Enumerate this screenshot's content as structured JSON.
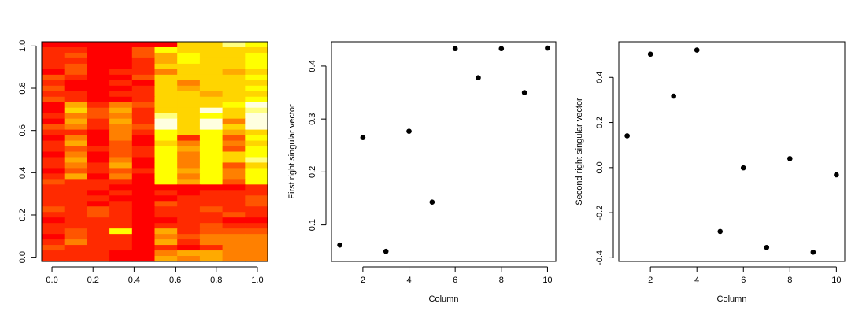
{
  "chart_data": [
    {
      "type": "heatmap",
      "title": "",
      "xlabel": "",
      "ylabel": "",
      "xlim": [
        -0.05,
        1.05
      ],
      "ylim": [
        -0.02,
        1.02
      ],
      "xticks": [
        "0.0",
        "0.2",
        "0.4",
        "0.6",
        "0.8",
        "1.0"
      ],
      "yticks": [
        "0.0",
        "0.2",
        "0.4",
        "0.6",
        "0.8",
        "1.0"
      ],
      "colormap": "heat",
      "colors": [
        "#ff0000",
        "#ff2a00",
        "#ff5500",
        "#ff8000",
        "#ffaa00",
        "#ffd500",
        "#ffff00",
        "#ffff80",
        "#ffffe0"
      ],
      "n_cols": 10,
      "n_rows": 40,
      "rows_top_to_bottom": [
        [
          0,
          0,
          0,
          0,
          0,
          0,
          5,
          5,
          7,
          6
        ],
        [
          1,
          1,
          0,
          0,
          2,
          6,
          5,
          5,
          5,
          5
        ],
        [
          1,
          2,
          0,
          0,
          2,
          4,
          6,
          5,
          5,
          6
        ],
        [
          1,
          1,
          0,
          0,
          1,
          4,
          6,
          5,
          5,
          6
        ],
        [
          1,
          2,
          0,
          0,
          1,
          5,
          5,
          5,
          5,
          6
        ],
        [
          0,
          2,
          0,
          1,
          1,
          3,
          5,
          5,
          4,
          5
        ],
        [
          2,
          1,
          0,
          0,
          2,
          5,
          5,
          5,
          5,
          6
        ],
        [
          1,
          0,
          0,
          1,
          0,
          5,
          3,
          5,
          5,
          5
        ],
        [
          2,
          0,
          0,
          0,
          1,
          5,
          4,
          5,
          5,
          6
        ],
        [
          1,
          1,
          0,
          1,
          1,
          5,
          5,
          4,
          5,
          5
        ],
        [
          2,
          1,
          0,
          0,
          1,
          5,
          5,
          5,
          5,
          6
        ],
        [
          0,
          4,
          1,
          3,
          2,
          5,
          5,
          5,
          6,
          8
        ],
        [
          0,
          5,
          2,
          4,
          1,
          5,
          5,
          8,
          5,
          7
        ],
        [
          1,
          3,
          2,
          3,
          1,
          7,
          5,
          6,
          5,
          8
        ],
        [
          0,
          4,
          1,
          4,
          1,
          8,
          5,
          8,
          3,
          8
        ],
        [
          2,
          3,
          1,
          3,
          2,
          8,
          5,
          8,
          5,
          8
        ],
        [
          1,
          1,
          0,
          3,
          1,
          6,
          5,
          6,
          4,
          5
        ],
        [
          0,
          3,
          0,
          3,
          0,
          6,
          1,
          6,
          2,
          6
        ],
        [
          1,
          4,
          0,
          2,
          0,
          5,
          3,
          6,
          3,
          5
        ],
        [
          1,
          2,
          1,
          2,
          1,
          6,
          4,
          6,
          2,
          6
        ],
        [
          0,
          3,
          0,
          2,
          1,
          6,
          3,
          6,
          5,
          6
        ],
        [
          1,
          4,
          0,
          3,
          0,
          6,
          3,
          6,
          5,
          7
        ],
        [
          1,
          3,
          1,
          4,
          0,
          6,
          3,
          6,
          2,
          5
        ],
        [
          0,
          2,
          1,
          2,
          1,
          6,
          4,
          6,
          3,
          6
        ],
        [
          1,
          4,
          0,
          3,
          0,
          6,
          3,
          6,
          3,
          6
        ],
        [
          2,
          1,
          1,
          1,
          0,
          6,
          4,
          6,
          2,
          6
        ],
        [
          1,
          1,
          1,
          0,
          0,
          0,
          0,
          0,
          0,
          1
        ],
        [
          1,
          1,
          0,
          1,
          0,
          1,
          0,
          1,
          1,
          1
        ],
        [
          1,
          1,
          1,
          0,
          0,
          0,
          1,
          1,
          1,
          2
        ],
        [
          1,
          1,
          0,
          1,
          0,
          2,
          1,
          1,
          1,
          2
        ],
        [
          2,
          1,
          2,
          1,
          0,
          1,
          1,
          2,
          1,
          1
        ],
        [
          1,
          1,
          2,
          1,
          0,
          1,
          1,
          1,
          2,
          1
        ],
        [
          0,
          1,
          1,
          1,
          0,
          0,
          1,
          1,
          0,
          0
        ],
        [
          1,
          1,
          1,
          1,
          0,
          1,
          1,
          2,
          1,
          1
        ],
        [
          1,
          2,
          1,
          6,
          0,
          4,
          1,
          2,
          2,
          2
        ],
        [
          0,
          2,
          1,
          1,
          0,
          3,
          2,
          3,
          3,
          3
        ],
        [
          1,
          3,
          1,
          1,
          0,
          4,
          1,
          3,
          3,
          3
        ],
        [
          2,
          1,
          1,
          1,
          0,
          1,
          0,
          1,
          3,
          3
        ],
        [
          1,
          1,
          1,
          0,
          0,
          3,
          4,
          4,
          3,
          3
        ],
        [
          1,
          1,
          1,
          0,
          0,
          4,
          3,
          4,
          3,
          3
        ]
      ]
    },
    {
      "type": "scatter",
      "title": "",
      "xlabel": "Column",
      "ylabel": "First right singular vector",
      "xlim": [
        0.64,
        10.36
      ],
      "ylim": [
        0.031,
        0.446
      ],
      "xticks": [
        2,
        4,
        6,
        8,
        10
      ],
      "yticks": [
        0.1,
        0.2,
        0.3,
        0.4
      ],
      "ytick_labels": [
        "0.1",
        "0.2",
        "0.3",
        "0.4"
      ],
      "x": [
        1,
        2,
        3,
        4,
        5,
        6,
        7,
        8,
        9,
        10
      ],
      "y": [
        0.062,
        0.265,
        0.05,
        0.277,
        0.143,
        0.433,
        0.378,
        0.433,
        0.35,
        0.434
      ]
    },
    {
      "type": "scatter",
      "title": "",
      "xlabel": "Column",
      "ylabel": "Second right singular vector",
      "xlim": [
        0.64,
        10.36
      ],
      "ylim": [
        -0.416,
        0.558
      ],
      "xticks": [
        2,
        4,
        6,
        8,
        10
      ],
      "yticks": [
        -0.4,
        -0.2,
        0.0,
        0.2,
        0.4
      ],
      "ytick_labels": [
        "-0.4",
        "-0.2",
        "0.0",
        "0.2",
        "0.4"
      ],
      "x": [
        1,
        2,
        3,
        4,
        5,
        6,
        7,
        8,
        9,
        10
      ],
      "y": [
        0.141,
        0.503,
        0.317,
        0.521,
        -0.283,
        -0.001,
        -0.354,
        0.04,
        -0.375,
        -0.032
      ]
    }
  ]
}
